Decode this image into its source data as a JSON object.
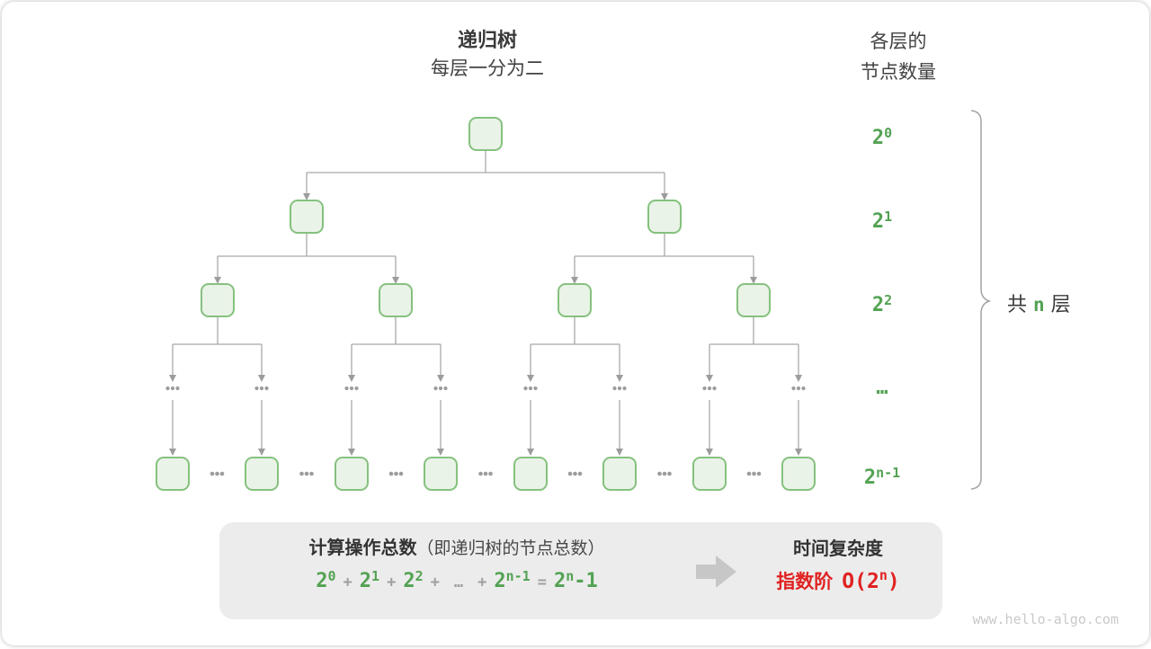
{
  "header": {
    "title": "递归树",
    "subtitle": "每层一分为二"
  },
  "right_header": {
    "line1": "各层的",
    "line2": "节点数量"
  },
  "level_labels": [
    {
      "base": "2",
      "sup": "0"
    },
    {
      "base": "2",
      "sup": "1"
    },
    {
      "base": "2",
      "sup": "2"
    },
    {
      "base": "…",
      "sup": ""
    },
    {
      "base": "2",
      "sup": "n-1"
    }
  ],
  "brace_label": {
    "before": "共",
    "n": "n",
    "after": "层"
  },
  "summary": {
    "caption_bold": "计算操作总数",
    "caption_normal": "（即递归树的节点总数）",
    "formula_tokens": [
      {
        "base": "2",
        "sup": "0"
      },
      {
        "op": "+"
      },
      {
        "base": "2",
        "sup": "1"
      },
      {
        "op": "+"
      },
      {
        "base": "2",
        "sup": "2"
      },
      {
        "op": "+"
      },
      {
        "op": "…"
      },
      {
        "op": "+"
      },
      {
        "base": "2",
        "sup": "n-1"
      },
      {
        "op": "="
      },
      {
        "base": "2",
        "sup": "n",
        "tail": "-1"
      }
    ],
    "right_title": "时间复杂度",
    "result_prefix": "指数阶",
    "result_base": "O(2",
    "result_sup": "n",
    "result_close": ")"
  },
  "watermark": "www.hello-algo.com",
  "colors": {
    "green_text": "#53a253",
    "red_text": "#e02222",
    "node_border": "#85c17e",
    "node_fill": "#eaf3e7",
    "panel_bg": "#ececec",
    "connector": "#a9a9a9"
  }
}
